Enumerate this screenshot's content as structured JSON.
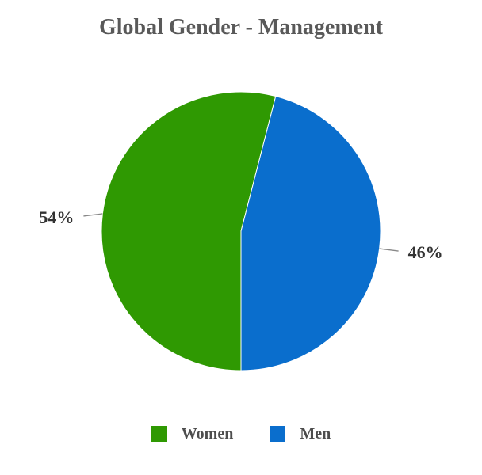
{
  "chart_data": {
    "type": "pie",
    "title": "Global Gender - Management",
    "slices": [
      {
        "name": "Women",
        "value": 54,
        "data_label": "54%",
        "color": "#2F9902"
      },
      {
        "name": "Men",
        "value": 46,
        "data_label": "46%",
        "color": "#0A6ECD"
      }
    ],
    "start_angle_deg": 180,
    "direction": "clockwise",
    "legend_position": "bottom",
    "background_color": "#FFFFFF",
    "title_color": "#595959",
    "data_label_color": "#333333",
    "legend_text_color": "#4D4D4D",
    "connector_color": "#888888",
    "slice_border_color": "#FFFFFF"
  }
}
